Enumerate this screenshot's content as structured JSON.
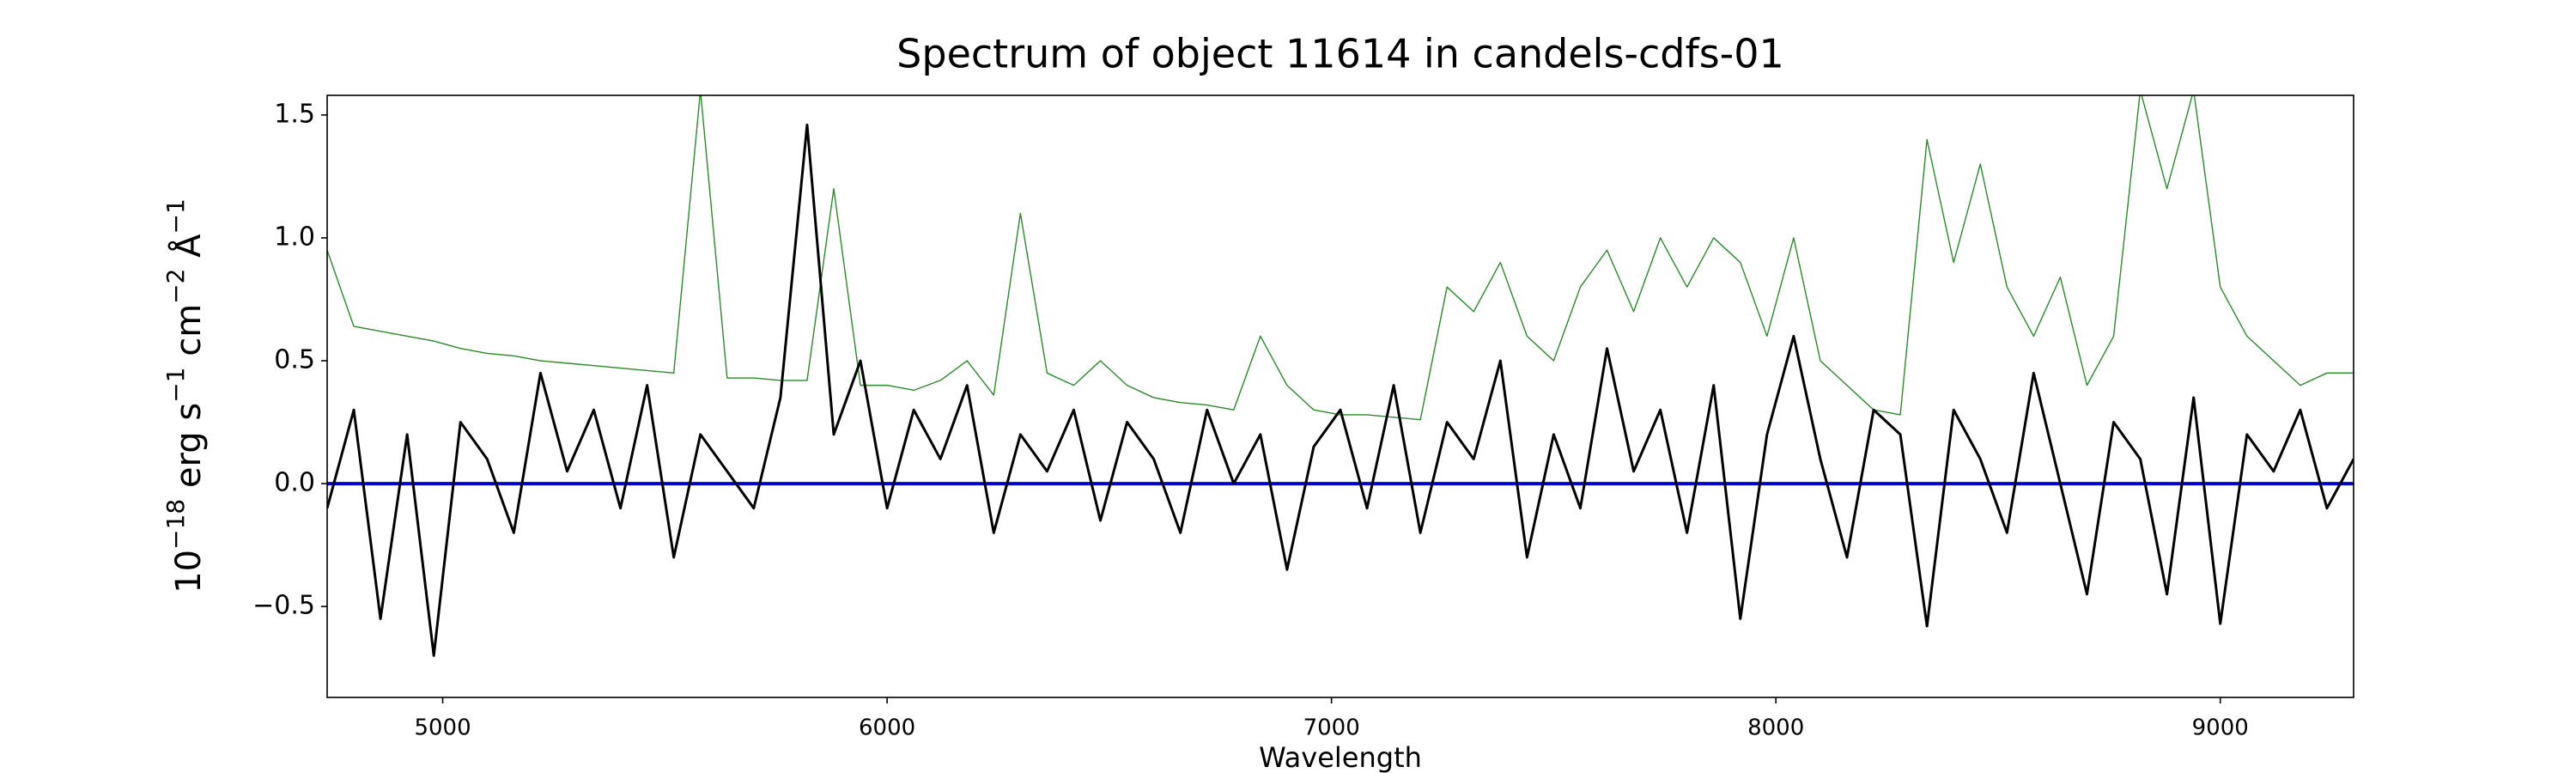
{
  "chart_data": {
    "type": "line",
    "title": "Spectrum of object 11614 in candels-cdfs-01",
    "xlabel": "Wavelength",
    "ylabel": [
      {
        "text": "10"
      },
      {
        "text": "−18",
        "sup": true
      },
      {
        "text": " erg s"
      },
      {
        "text": "−1",
        "sup": true
      },
      {
        "text": " cm"
      },
      {
        "text": "−2",
        "sup": true
      },
      {
        "text": " Å"
      },
      {
        "text": "−1",
        "sup": true
      }
    ],
    "xlim": [
      4740,
      9300
    ],
    "ylim": [
      -0.87,
      1.58
    ],
    "xticks": [
      5000,
      6000,
      7000,
      8000,
      9000
    ],
    "yticks": [
      {
        "value": -0.5,
        "label": "−0.5"
      },
      {
        "value": 0,
        "label": "0.0"
      },
      {
        "value": 0.5,
        "label": "0.5"
      },
      {
        "value": 1,
        "label": "1.0"
      },
      {
        "value": 1.5,
        "label": "1.5"
      }
    ],
    "grid": false,
    "x": [
      4740,
      4800,
      4860,
      4920,
      4980,
      5040,
      5100,
      5160,
      5220,
      5280,
      5340,
      5400,
      5460,
      5520,
      5580,
      5640,
      5700,
      5760,
      5820,
      5880,
      5940,
      6000,
      6060,
      6120,
      6180,
      6240,
      6300,
      6360,
      6420,
      6480,
      6540,
      6600,
      6660,
      6720,
      6780,
      6840,
      6900,
      6960,
      7020,
      7080,
      7140,
      7200,
      7260,
      7320,
      7380,
      7440,
      7500,
      7560,
      7620,
      7680,
      7740,
      7800,
      7860,
      7920,
      7980,
      8040,
      8100,
      8160,
      8220,
      8280,
      8340,
      8400,
      8460,
      8520,
      8580,
      8640,
      8700,
      8760,
      8820,
      8880,
      8940,
      9000,
      9060,
      9120,
      9180,
      9240,
      9300
    ],
    "series": [
      {
        "color": "#2a8a2a",
        "width": 1.4,
        "values": [
          0.95,
          0.64,
          0.62,
          0.6,
          0.58,
          0.55,
          0.53,
          0.52,
          0.5,
          0.49,
          0.48,
          0.47,
          0.46,
          0.45,
          1.6,
          0.43,
          0.43,
          0.42,
          0.42,
          1.2,
          0.4,
          0.4,
          0.38,
          0.42,
          0.5,
          0.36,
          1.1,
          0.45,
          0.4,
          0.5,
          0.4,
          0.35,
          0.33,
          0.32,
          0.3,
          0.6,
          0.4,
          0.3,
          0.28,
          0.28,
          0.27,
          0.26,
          0.8,
          0.7,
          0.9,
          0.6,
          0.5,
          0.8,
          0.95,
          0.7,
          1.0,
          0.8,
          1.0,
          0.9,
          0.6,
          1.0,
          0.5,
          0.4,
          0.3,
          0.28,
          1.4,
          0.9,
          1.3,
          0.8,
          0.6,
          0.84,
          0.4,
          0.6,
          1.6,
          1.2,
          1.6,
          0.8,
          0.6,
          0.5,
          0.4,
          0.45,
          0.45
        ]
      },
      {
        "color": "#0000cc",
        "width": 4,
        "values": [
          0,
          0,
          0,
          0,
          0,
          0,
          0,
          0,
          0,
          0,
          0,
          0,
          0,
          0,
          0,
          0,
          0,
          0,
          0,
          0,
          0,
          0,
          0,
          0,
          0,
          0,
          0,
          0,
          0,
          0,
          0,
          0,
          0,
          0,
          0,
          0,
          0,
          0,
          0,
          0,
          0,
          0,
          0,
          0,
          0,
          0,
          0,
          0,
          0,
          0,
          0,
          0,
          0,
          0,
          0,
          0,
          0,
          0,
          0,
          0,
          0,
          0,
          0,
          0,
          0,
          0,
          0,
          0,
          0,
          0,
          0,
          0,
          0,
          0,
          0,
          0,
          0
        ]
      },
      {
        "color": "#000000",
        "width": 3,
        "values": [
          -0.1,
          0.3,
          -0.55,
          0.2,
          -0.7,
          0.25,
          0.1,
          -0.2,
          0.45,
          0.05,
          0.3,
          -0.1,
          0.4,
          -0.3,
          0.2,
          0.05,
          -0.1,
          0.35,
          1.46,
          0.2,
          0.5,
          -0.1,
          0.3,
          0.1,
          0.4,
          -0.2,
          0.2,
          0.05,
          0.3,
          -0.15,
          0.25,
          0.1,
          -0.2,
          0.3,
          0.0,
          0.2,
          -0.35,
          0.15,
          0.3,
          -0.1,
          0.4,
          -0.2,
          0.25,
          0.1,
          0.5,
          -0.3,
          0.2,
          -0.1,
          0.55,
          0.05,
          0.3,
          -0.2,
          0.4,
          -0.55,
          0.2,
          0.6,
          0.1,
          -0.3,
          0.3,
          0.2,
          -0.58,
          0.3,
          0.1,
          -0.2,
          0.45,
          0.0,
          -0.45,
          0.25,
          0.1,
          -0.45,
          0.35,
          -0.57,
          0.2,
          0.05,
          0.3,
          -0.1,
          0.1
        ]
      }
    ]
  }
}
